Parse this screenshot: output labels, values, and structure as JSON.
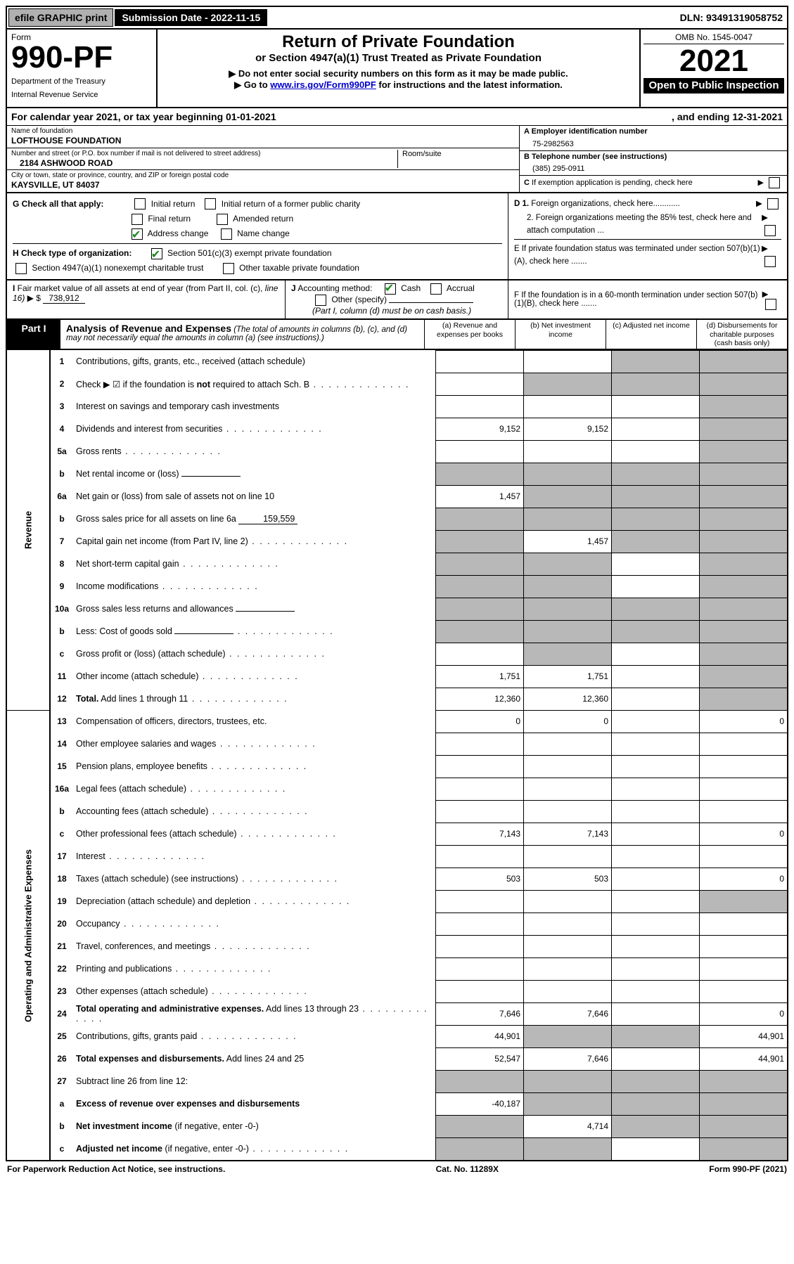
{
  "topbar": {
    "efile": "efile GRAPHIC print",
    "submission": "Submission Date - 2022-11-15",
    "dln": "DLN: 93491319058752"
  },
  "header": {
    "form_label": "Form",
    "form_number": "990-PF",
    "dept1": "Department of the Treasury",
    "dept2": "Internal Revenue Service",
    "title": "Return of Private Foundation",
    "subtitle": "or Section 4947(a)(1) Trust Treated as Private Foundation",
    "note1_prefix": "▶ Do not enter social security numbers on this form as it may be made public.",
    "note2_prefix": "▶ Go to ",
    "note2_link": "www.irs.gov/Form990PF",
    "note2_suffix": " for instructions and the latest information.",
    "omb": "OMB No. 1545-0047",
    "year": "2021",
    "open": "Open to Public Inspection"
  },
  "calyear": {
    "left": "For calendar year 2021, or tax year beginning 01-01-2021",
    "right": ", and ending 12-31-2021"
  },
  "entity": {
    "name_label": "Name of foundation",
    "name": "LOFTHOUSE FOUNDATION",
    "addr_label": "Number and street (or P.O. box number if mail is not delivered to street address)",
    "addr": "2184 ASHWOOD ROAD",
    "room_label": "Room/suite",
    "city_label": "City or town, state or province, country, and ZIP or foreign postal code",
    "city": "KAYSVILLE, UT  84037",
    "ein_label": "A Employer identification number",
    "ein": "75-2982563",
    "tel_label": "B Telephone number (see instructions)",
    "tel": "(385) 295-0911",
    "pending_label": "C If exemption application is pending, check here"
  },
  "checks": {
    "g_label": "G Check all that apply:",
    "g_items": [
      "Initial return",
      "Initial return of a former public charity",
      "Final return",
      "Amended return",
      "Address change",
      "Name change"
    ],
    "h_label": "H Check type of organization:",
    "h_items": [
      "Section 501(c)(3) exempt private foundation",
      "Section 4947(a)(1) nonexempt charitable trust",
      "Other taxable private foundation"
    ],
    "d1": "D 1. Foreign organizations, check here............",
    "d2": "2. Foreign organizations meeting the 85% test, check here and attach computation ...",
    "e": "E  If private foundation status was terminated under section 507(b)(1)(A), check here .......",
    "f": "F  If the foundation is in a 60-month termination under section 507(b)(1)(B), check here ......."
  },
  "fmv": {
    "i_label": "I Fair market value of all assets at end of year (from Part II, col. (c), line 16) ▶ $",
    "i_value": "738,912",
    "j_label": "J Accounting method:",
    "j_cash": "Cash",
    "j_accrual": "Accrual",
    "j_other": "Other (specify)",
    "j_note": "(Part I, column (d) must be on cash basis.)"
  },
  "part1": {
    "label": "Part I",
    "title": "Analysis of Revenue and Expenses",
    "note": " (The total of amounts in columns (b), (c), and (d) may not necessarily equal the amounts in column (a) (see instructions).)",
    "col_a": "(a)  Revenue and expenses per books",
    "col_b": "(b)  Net investment income",
    "col_c": "(c)  Adjusted net income",
    "col_d": "(d)  Disbursements for charitable purposes (cash basis only)"
  },
  "sidebars": {
    "revenue": "Revenue",
    "expenses": "Operating and Administrative Expenses"
  },
  "rows": [
    {
      "n": "1",
      "d": "Contributions, gifts, grants, etc., received (attach schedule)",
      "a": "",
      "b": "",
      "c": "g",
      "dd": "g"
    },
    {
      "n": "2",
      "d": "Check ▶ ☑ if the foundation is <b>not</b> required to attach Sch. B",
      "a": "",
      "b": "g",
      "c": "g",
      "dd": "g",
      "dots": true
    },
    {
      "n": "3",
      "d": "Interest on savings and temporary cash investments",
      "a": "",
      "b": "",
      "c": "",
      "dd": "g"
    },
    {
      "n": "4",
      "d": "Dividends and interest from securities",
      "a": "9,152",
      "b": "9,152",
      "c": "",
      "dd": "g",
      "dots": true
    },
    {
      "n": "5a",
      "d": "Gross rents",
      "a": "",
      "b": "",
      "c": "",
      "dd": "g",
      "dots": true
    },
    {
      "n": "b",
      "d": "Net rental income or (loss)",
      "a": "g",
      "b": "g",
      "c": "g",
      "dd": "g",
      "inline": ""
    },
    {
      "n": "6a",
      "d": "Net gain or (loss) from sale of assets not on line 10",
      "a": "1,457",
      "b": "g",
      "c": "g",
      "dd": "g"
    },
    {
      "n": "b",
      "d": "Gross sales price for all assets on line 6a",
      "a": "g",
      "b": "g",
      "c": "g",
      "dd": "g",
      "inline": "159,559"
    },
    {
      "n": "7",
      "d": "Capital gain net income (from Part IV, line 2)",
      "a": "g",
      "b": "1,457",
      "c": "g",
      "dd": "g",
      "dots": true
    },
    {
      "n": "8",
      "d": "Net short-term capital gain",
      "a": "g",
      "b": "g",
      "c": "",
      "dd": "g",
      "dots": true
    },
    {
      "n": "9",
      "d": "Income modifications",
      "a": "g",
      "b": "g",
      "c": "",
      "dd": "g",
      "dots": true
    },
    {
      "n": "10a",
      "d": "Gross sales less returns and allowances",
      "a": "g",
      "b": "g",
      "c": "g",
      "dd": "g",
      "inline": ""
    },
    {
      "n": "b",
      "d": "Less: Cost of goods sold",
      "a": "g",
      "b": "g",
      "c": "g",
      "dd": "g",
      "inline": "",
      "dots": true
    },
    {
      "n": "c",
      "d": "Gross profit or (loss) (attach schedule)",
      "a": "",
      "b": "g",
      "c": "",
      "dd": "g",
      "dots": true
    },
    {
      "n": "11",
      "d": "Other income (attach schedule)",
      "a": "1,751",
      "b": "1,751",
      "c": "",
      "dd": "g",
      "dots": true
    },
    {
      "n": "12",
      "d": "<b>Total.</b> Add lines 1 through 11",
      "a": "12,360",
      "b": "12,360",
      "c": "",
      "dd": "g",
      "dots": true
    }
  ],
  "exp_rows": [
    {
      "n": "13",
      "d": "Compensation of officers, directors, trustees, etc.",
      "a": "0",
      "b": "0",
      "c": "",
      "dd": "0"
    },
    {
      "n": "14",
      "d": "Other employee salaries and wages",
      "a": "",
      "b": "",
      "c": "",
      "dd": "",
      "dots": true
    },
    {
      "n": "15",
      "d": "Pension plans, employee benefits",
      "a": "",
      "b": "",
      "c": "",
      "dd": "",
      "dots": true
    },
    {
      "n": "16a",
      "d": "Legal fees (attach schedule)",
      "a": "",
      "b": "",
      "c": "",
      "dd": "",
      "dots": true
    },
    {
      "n": "b",
      "d": "Accounting fees (attach schedule)",
      "a": "",
      "b": "",
      "c": "",
      "dd": "",
      "dots": true
    },
    {
      "n": "c",
      "d": "Other professional fees (attach schedule)",
      "a": "7,143",
      "b": "7,143",
      "c": "",
      "dd": "0",
      "dots": true
    },
    {
      "n": "17",
      "d": "Interest",
      "a": "",
      "b": "",
      "c": "",
      "dd": "",
      "dots": true
    },
    {
      "n": "18",
      "d": "Taxes (attach schedule) (see instructions)",
      "a": "503",
      "b": "503",
      "c": "",
      "dd": "0",
      "dots": true
    },
    {
      "n": "19",
      "d": "Depreciation (attach schedule) and depletion",
      "a": "",
      "b": "",
      "c": "",
      "dd": "g",
      "dots": true
    },
    {
      "n": "20",
      "d": "Occupancy",
      "a": "",
      "b": "",
      "c": "",
      "dd": "",
      "dots": true
    },
    {
      "n": "21",
      "d": "Travel, conferences, and meetings",
      "a": "",
      "b": "",
      "c": "",
      "dd": "",
      "dots": true
    },
    {
      "n": "22",
      "d": "Printing and publications",
      "a": "",
      "b": "",
      "c": "",
      "dd": "",
      "dots": true
    },
    {
      "n": "23",
      "d": "Other expenses (attach schedule)",
      "a": "",
      "b": "",
      "c": "",
      "dd": "",
      "dots": true
    },
    {
      "n": "24",
      "d": "<b>Total operating and administrative expenses.</b> Add lines 13 through 23",
      "a": "7,646",
      "b": "7,646",
      "c": "",
      "dd": "0",
      "dots": true
    },
    {
      "n": "25",
      "d": "Contributions, gifts, grants paid",
      "a": "44,901",
      "b": "g",
      "c": "g",
      "dd": "44,901",
      "dots": true
    },
    {
      "n": "26",
      "d": "<b>Total expenses and disbursements.</b> Add lines 24 and 25",
      "a": "52,547",
      "b": "7,646",
      "c": "",
      "dd": "44,901"
    },
    {
      "n": "27",
      "d": "Subtract line 26 from line 12:",
      "a": "g",
      "b": "g",
      "c": "g",
      "dd": "g"
    },
    {
      "n": "a",
      "d": "<b>Excess of revenue over expenses and disbursements</b>",
      "a": "-40,187",
      "b": "g",
      "c": "g",
      "dd": "g"
    },
    {
      "n": "b",
      "d": "<b>Net investment income</b> (if negative, enter -0-)",
      "a": "g",
      "b": "4,714",
      "c": "g",
      "dd": "g"
    },
    {
      "n": "c",
      "d": "<b>Adjusted net income</b> (if negative, enter -0-)",
      "a": "g",
      "b": "g",
      "c": "",
      "dd": "g",
      "dots": true
    }
  ],
  "footer": {
    "left": "For Paperwork Reduction Act Notice, see instructions.",
    "mid": "Cat. No. 11289X",
    "right": "Form 990-PF (2021)"
  }
}
